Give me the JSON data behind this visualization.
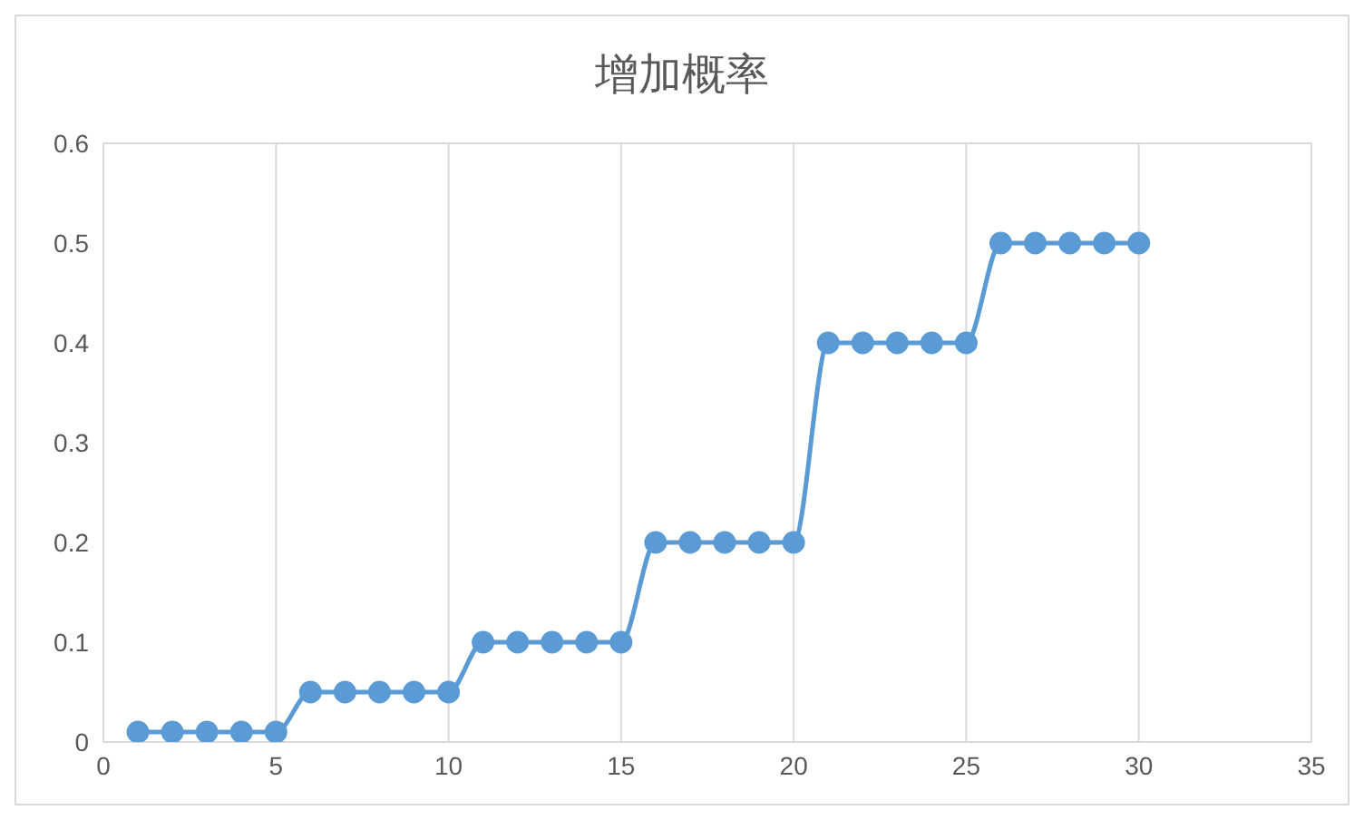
{
  "chart_data": {
    "type": "line",
    "title": "增加概率",
    "x": [
      1,
      2,
      3,
      4,
      5,
      6,
      7,
      8,
      9,
      10,
      11,
      12,
      13,
      14,
      15,
      16,
      17,
      18,
      19,
      20,
      21,
      22,
      23,
      24,
      25,
      26,
      27,
      28,
      29,
      30
    ],
    "series": [
      {
        "color": "#5b9bd5",
        "values": [
          0.01,
          0.01,
          0.01,
          0.01,
          0.01,
          0.05,
          0.05,
          0.05,
          0.05,
          0.05,
          0.1,
          0.1,
          0.1,
          0.1,
          0.1,
          0.2,
          0.2,
          0.2,
          0.2,
          0.2,
          0.4,
          0.4,
          0.4,
          0.4,
          0.4,
          0.5,
          0.5,
          0.5,
          0.5,
          0.5
        ]
      }
    ],
    "xlim": [
      0,
      35
    ],
    "xticks": [
      0,
      5,
      10,
      15,
      20,
      25,
      30,
      35
    ],
    "ylim": [
      0,
      0.6
    ],
    "yticks": [
      0,
      0.1,
      0.2,
      0.3,
      0.4,
      0.5,
      0.6
    ],
    "grid": true,
    "marker": "circle",
    "line_style": "solid"
  }
}
